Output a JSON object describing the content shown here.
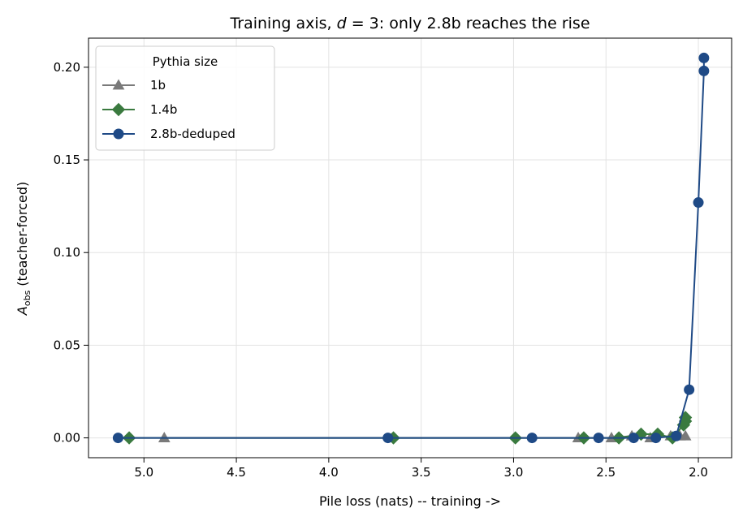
{
  "chart_data": {
    "type": "line",
    "title_parts": [
      "Training axis, ",
      "d",
      " = 3: only 2.8b reaches the rise"
    ],
    "xlabel": "Pile loss (nats) -- training ->",
    "ylabel_parts": [
      "A",
      "obs",
      " (teacher-forced)"
    ],
    "xlim": [
      5.3,
      1.82
    ],
    "ylim": [
      -0.0107,
      0.2157
    ],
    "x_reversed": true,
    "grid": true,
    "xticks": [
      5.0,
      4.5,
      4.0,
      3.5,
      3.0,
      2.5,
      2.0
    ],
    "xtick_labels": [
      "5.0",
      "4.5",
      "4.0",
      "3.5",
      "3.0",
      "2.5",
      "2.0"
    ],
    "yticks": [
      0.0,
      0.05,
      0.1,
      0.15,
      0.2
    ],
    "ytick_labels": [
      "0.00",
      "0.05",
      "0.10",
      "0.15",
      "0.20"
    ],
    "legend": {
      "title": "Pythia size",
      "placement": "top-left"
    },
    "series": [
      {
        "name": "1b",
        "color": "#7a7a7a",
        "marker": "triangle",
        "x": [
          4.89,
          2.65,
          2.47,
          2.36,
          2.26,
          2.15,
          2.1,
          2.07
        ],
        "y": [
          0.0,
          0.0,
          0.0,
          0.001,
          0.0,
          0.001,
          0.001,
          0.001
        ]
      },
      {
        "name": "1.4b",
        "color": "#3a7a3f",
        "marker": "diamond",
        "x": [
          5.08,
          3.65,
          2.99,
          2.62,
          2.43,
          2.31,
          2.22,
          2.14,
          2.08,
          2.07,
          2.07
        ],
        "y": [
          0.0,
          0.0,
          0.0,
          0.0,
          0.0,
          0.002,
          0.002,
          0.0,
          0.007,
          0.009,
          0.011
        ]
      },
      {
        "name": "2.8b-deduped",
        "color": "#1f4a86",
        "marker": "circle",
        "x": [
          5.14,
          3.68,
          2.9,
          2.54,
          2.35,
          2.23,
          2.12,
          2.05,
          2.0,
          1.97,
          1.97
        ],
        "y": [
          0.0,
          0.0,
          0.0,
          0.0,
          0.0,
          0.0,
          0.001,
          0.026,
          0.127,
          0.198,
          0.205
        ]
      }
    ]
  }
}
